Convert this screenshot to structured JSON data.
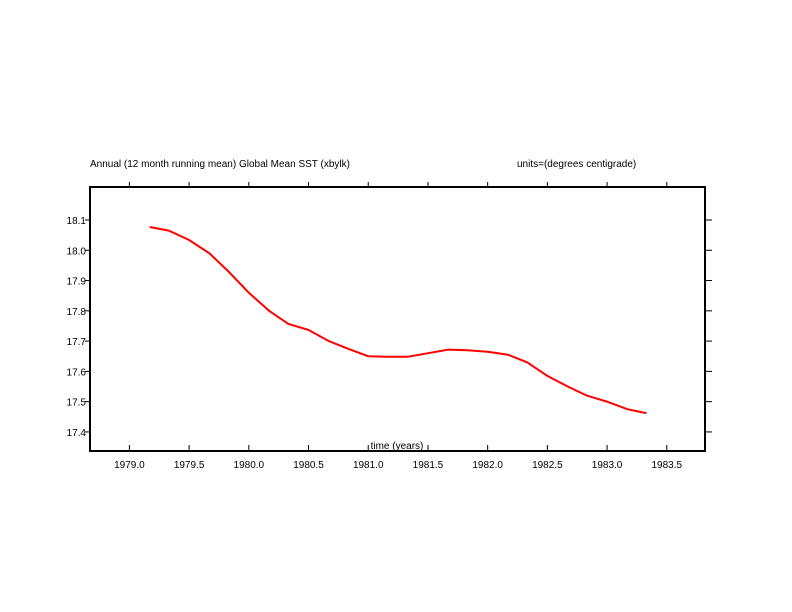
{
  "chart_data": {
    "type": "line",
    "title": "Annual (12 month running mean) Global Mean SST (xbylk)",
    "units": "units=(degrees centigrade)",
    "xlabel": "time (years)",
    "ylabel": "",
    "xlim": [
      1978.67,
      1983.82
    ],
    "ylim": [
      17.337,
      18.209
    ],
    "grid": false,
    "xticks": [
      1979.0,
      1979.5,
      1980.0,
      1980.5,
      1981.0,
      1981.5,
      1982.0,
      1982.5,
      1983.0,
      1983.5
    ],
    "xtick_labels": [
      "1979.0",
      "1979.5",
      "1980.0",
      "1980.5",
      "1981.0",
      "1981.5",
      "1982.0",
      "1982.5",
      "1983.0",
      "1983.5"
    ],
    "yticks": [
      17.4,
      17.5,
      17.6,
      17.7,
      17.8,
      17.9,
      18.0,
      18.1
    ],
    "ytick_labels": [
      "17.4",
      "17.5",
      "17.6",
      "17.7",
      "17.8",
      "17.9",
      "18.0",
      "18.1"
    ],
    "series": [
      {
        "name": "Global Mean SST",
        "color": "#ff0000",
        "x": [
          1979.17,
          1979.33,
          1979.5,
          1979.67,
          1979.83,
          1980.0,
          1980.17,
          1980.33,
          1980.5,
          1980.67,
          1980.83,
          1981.0,
          1981.17,
          1981.33,
          1981.5,
          1981.67,
          1981.83,
          1982.0,
          1982.17,
          1982.33,
          1982.5,
          1982.67,
          1982.83,
          1983.0,
          1983.17,
          1983.33
        ],
        "y": [
          18.077,
          18.065,
          18.034,
          17.99,
          17.93,
          17.86,
          17.8,
          17.757,
          17.737,
          17.7,
          17.675,
          17.65,
          17.648,
          17.648,
          17.66,
          17.672,
          17.67,
          17.665,
          17.655,
          17.63,
          17.585,
          17.55,
          17.52,
          17.5,
          17.475,
          17.462
        ]
      }
    ]
  }
}
